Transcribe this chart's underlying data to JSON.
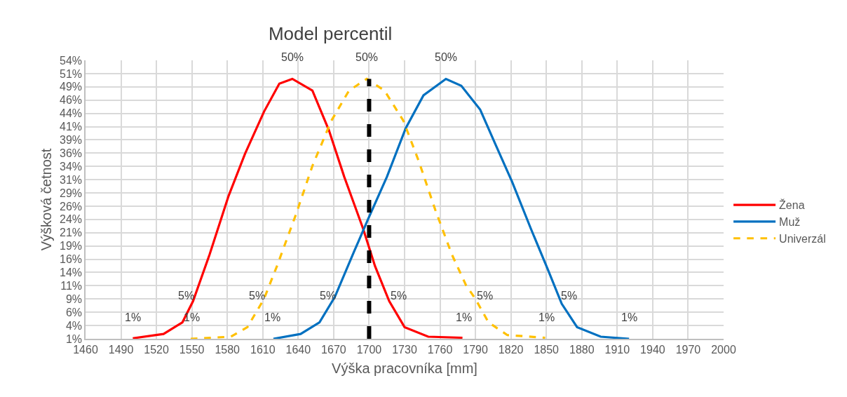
{
  "chart_data": {
    "type": "line",
    "title": "Model percentil",
    "xlabel": "Výška pracovníka [mm]",
    "ylabel": "Výšková četnost",
    "series": [
      {
        "name": "Žena",
        "color": "#ff0000",
        "line_style": "solid",
        "x": [
          1500,
          1526,
          1542,
          1551,
          1565,
          1581,
          1595,
          1611,
          1624,
          1635,
          1652,
          1666,
          1679,
          1695,
          1705,
          1717,
          1730,
          1750,
          1779
        ],
        "values": [
          1.1,
          1.9,
          4.1,
          8.1,
          16.9,
          27.9,
          35.9,
          43.8,
          49.1,
          50,
          47.8,
          40.3,
          31.5,
          21.7,
          14.7,
          8.1,
          3.2,
          1.4,
          1.2
        ]
      },
      {
        "name": "Muž",
        "color": "#0070c0",
        "line_style": "solid",
        "x": [
          1619,
          1642,
          1658,
          1671,
          1687,
          1699,
          1715,
          1731,
          1746,
          1765,
          1778,
          1794,
          1807,
          1821,
          1837,
          1851,
          1863,
          1876,
          1896,
          1920
        ],
        "values": [
          1,
          1.9,
          4.1,
          8.9,
          17.3,
          23.5,
          31.5,
          40.7,
          46.9,
          50,
          48.7,
          44.2,
          37.6,
          30.6,
          21.7,
          14.2,
          7.6,
          3.2,
          1.4,
          1
        ]
      },
      {
        "name": "Univerzál",
        "color": "#ffc000",
        "line_style": "dashed",
        "x": [
          1549,
          1583,
          1597,
          1611,
          1622,
          1638,
          1652,
          1668,
          1683,
          1698,
          1713,
          1729,
          1742,
          1756,
          1770,
          1782,
          1790,
          1801,
          1817,
          1849
        ],
        "values": [
          1,
          1.4,
          3.2,
          8.5,
          14.7,
          24.4,
          33.6,
          42.1,
          47.8,
          50,
          47.8,
          42.1,
          34.5,
          25.3,
          16.9,
          11.1,
          8.5,
          4.1,
          1.7,
          1.2
        ]
      },
      {
        "color": "#000000",
        "line_style": "dashed",
        "x": [
          1700,
          1700
        ],
        "values": [
          1,
          50
        ]
      }
    ],
    "annotations": [
      {
        "text": "1%",
        "x": 1500,
        "y": 1
      },
      {
        "text": "5%",
        "x": 1545,
        "y": 5
      },
      {
        "text": "50%",
        "x": 1635,
        "y": 50
      },
      {
        "text": "5%",
        "x": 1725,
        "y": 5
      },
      {
        "text": "1%",
        "x": 1780,
        "y": 1
      },
      {
        "text": "1%",
        "x": 1550,
        "y": 1
      },
      {
        "text": "5%",
        "x": 1605,
        "y": 5
      },
      {
        "text": "50%",
        "x": 1698,
        "y": 50
      },
      {
        "text": "5%",
        "x": 1798,
        "y": 5
      },
      {
        "text": "1%",
        "x": 1850,
        "y": 1
      },
      {
        "text": "1%",
        "x": 1618,
        "y": 1
      },
      {
        "text": "5%",
        "x": 1665,
        "y": 5
      },
      {
        "text": "50%",
        "x": 1765,
        "y": 50
      },
      {
        "text": "5%",
        "x": 1869,
        "y": 5
      },
      {
        "text": "1%",
        "x": 1920,
        "y": 1
      }
    ],
    "xlim": [
      1460,
      2000
    ],
    "xticks": [
      1460,
      1490,
      1520,
      1550,
      1580,
      1610,
      1640,
      1670,
      1700,
      1730,
      1760,
      1790,
      1820,
      1850,
      1880,
      1910,
      1940,
      1970,
      2000
    ],
    "ylim": [
      1,
      53.5
    ],
    "yticks": [
      {
        "value": 1,
        "label": "1%"
      },
      {
        "value": 3.5,
        "label": "4%"
      },
      {
        "value": 6,
        "label": "6%"
      },
      {
        "value": 8.5,
        "label": "9%"
      },
      {
        "value": 11,
        "label": "11%"
      },
      {
        "value": 13.5,
        "label": "14%"
      },
      {
        "value": 16,
        "label": "16%"
      },
      {
        "value": 18.5,
        "label": "19%"
      },
      {
        "value": 21,
        "label": "21%"
      },
      {
        "value": 23.5,
        "label": "24%"
      },
      {
        "value": 26,
        "label": "26%"
      },
      {
        "value": 28.5,
        "label": "29%"
      },
      {
        "value": 31,
        "label": "31%"
      },
      {
        "value": 33.5,
        "label": "34%"
      },
      {
        "value": 36,
        "label": "36%"
      },
      {
        "value": 38.5,
        "label": "39%"
      },
      {
        "value": 41,
        "label": "41%"
      },
      {
        "value": 43.5,
        "label": "44%"
      },
      {
        "value": 46,
        "label": "46%"
      },
      {
        "value": 48.5,
        "label": "49%"
      },
      {
        "value": 51,
        "label": "51%"
      },
      {
        "value": 53.5,
        "label": "54%"
      }
    ],
    "grid": true,
    "legend": "right",
    "marker": "none"
  }
}
